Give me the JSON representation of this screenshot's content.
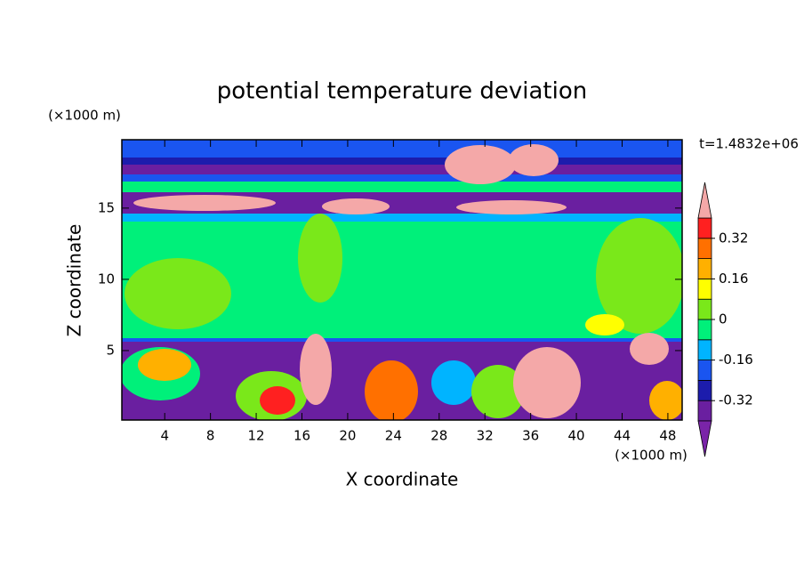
{
  "chart_data": {
    "type": "contour",
    "title": "potential temperature deviation",
    "x_label": "X coordinate",
    "y_label": "Z coordinate",
    "x_unit": "(×1000 m)",
    "y_unit": "(×1000 m)",
    "time_label": "t=1.4832e+06",
    "xlim": [
      0.25,
      49.25
    ],
    "ylim": [
      0.125,
      19.8
    ],
    "xticks": [
      4,
      8,
      12,
      16,
      20,
      24,
      28,
      32,
      36,
      40,
      44,
      48
    ],
    "yticks": [
      5,
      10,
      15
    ],
    "levels": [
      -0.4,
      -0.32,
      -0.24,
      -0.16,
      -0.08,
      0,
      0.08,
      0.16,
      0.24,
      0.32,
      0.4
    ],
    "colorbar_ticks": [
      0.32,
      0.16,
      0,
      -0.16,
      -0.32
    ],
    "colors": [
      "#7a24a8",
      "#6a1fa0",
      "#1c1cac",
      "#1a55f0",
      "#00b4ff",
      "#00f07a",
      "#7ae81a",
      "#ffff00",
      "#ffb000",
      "#ff7000",
      "#ff2020",
      "#f4a8a8"
    ]
  }
}
